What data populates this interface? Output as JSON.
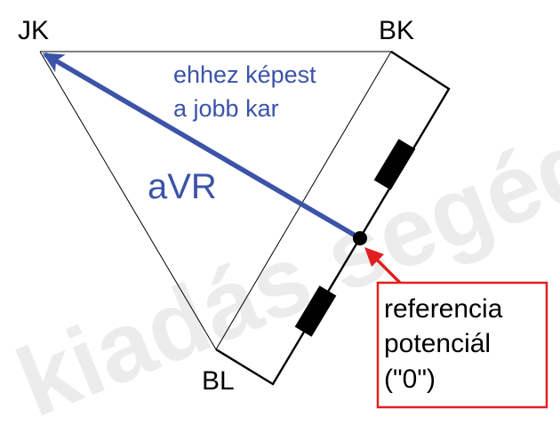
{
  "labels": {
    "jk": "JK",
    "bk": "BK",
    "bl": "BL",
    "blue_line1": "ehhez képest",
    "blue_line2": "a jobb kar",
    "avr": "aVR",
    "ref_line1": "referencia",
    "ref_line2": "potenciál",
    "ref_line3": "(\"0\")",
    "watermark": "kiadás segéd"
  },
  "colors": {
    "vector": "#3c53a8",
    "arrow_red": "#e02020",
    "box_border": "#e02020",
    "ink": "#000000",
    "watermark": "#e9e9e9"
  }
}
